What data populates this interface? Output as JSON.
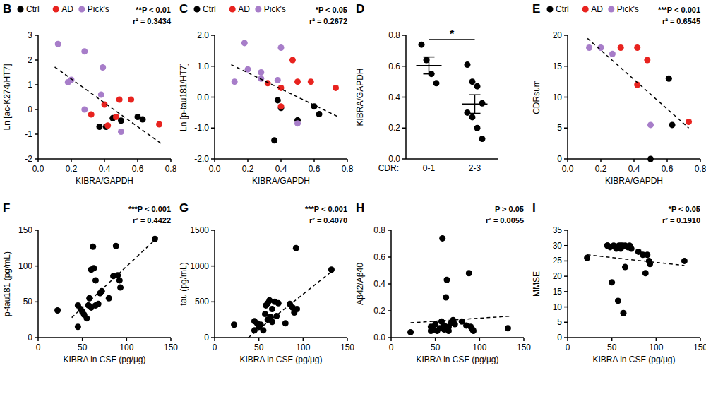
{
  "chart_data": [
    {
      "type": "scatter",
      "title": "B",
      "x_label": "KIBRA/GAPDH",
      "y_label": "Ln [ac-K274/HT7]",
      "xlim": [
        0,
        0.8
      ],
      "xticks": [
        {
          "value": 0,
          "label": "0.0"
        },
        0.2,
        0.4,
        0.6,
        0.8
      ],
      "ylim": [
        -2,
        3
      ],
      "yticks": [
        -2,
        -1,
        0,
        1,
        2,
        3
      ],
      "legend": "top-left",
      "annotations": [
        "**P < 0.01",
        "r² = 0.3434"
      ],
      "series": [
        {
          "name": "Ctrl",
          "color": "#000000",
          "marker": "circle",
          "x": [
            0.37,
            0.41,
            0.45,
            0.5,
            0.6,
            0.63
          ],
          "values": [
            -0.7,
            -0.7,
            -0.35,
            -0.45,
            -0.3,
            -0.4
          ]
        },
        {
          "name": "AD",
          "color": "#e8231f",
          "marker": "circle",
          "x": [
            0.32,
            0.4,
            0.42,
            0.47,
            0.49,
            0.56,
            0.73
          ],
          "values": [
            -0.2,
            0.2,
            -0.65,
            -0.3,
            0.4,
            0.4,
            -0.6
          ]
        },
        {
          "name": "Pick's",
          "color": "#a77dc9",
          "marker": "circle",
          "x": [
            0.12,
            0.18,
            0.2,
            0.28,
            0.28,
            0.38,
            0.39,
            0.5
          ],
          "values": [
            2.65,
            1.1,
            1.2,
            2.35,
            0,
            0.6,
            1.7,
            -0.9
          ]
        },
        {
          "type": "line",
          "line_style": "dashed",
          "color": "#000000",
          "x": [
            0.1,
            0.75
          ],
          "values": [
            1.72,
            -1.42
          ]
        }
      ]
    },
    {
      "type": "scatter",
      "title": "C",
      "x_label": "KIBRA/GAPDH",
      "y_label": "Ln [p-tau181/HT7]",
      "xlim": [
        0,
        0.8
      ],
      "xticks": [
        {
          "value": 0,
          "label": "0.0"
        },
        0.2,
        0.4,
        0.6,
        0.8
      ],
      "ylim": [
        -2,
        2
      ],
      "yticks": [
        {
          "value": -2,
          "label": "-2.0"
        },
        {
          "value": -1,
          "label": "-1.0"
        },
        {
          "value": 0,
          "label": "0.0"
        },
        {
          "value": 1,
          "label": "1.0"
        },
        {
          "value": 2,
          "label": "2.0"
        }
      ],
      "legend": "top-left",
      "annotations": [
        "*P < 0.05",
        "r² = 0.2672"
      ],
      "series": [
        {
          "name": "Ctrl",
          "color": "#000000",
          "marker": "circle",
          "x": [
            0.36,
            0.38,
            0.4,
            0.5,
            0.6,
            0.63
          ],
          "values": [
            -1.4,
            -0.1,
            -0.35,
            -0.75,
            -0.3,
            -0.55
          ]
        },
        {
          "name": "AD",
          "color": "#e8231f",
          "marker": "circle",
          "x": [
            0.32,
            0.4,
            0.4,
            0.47,
            0.5,
            0.58,
            0.73
          ],
          "values": [
            0.45,
            0.3,
            -0.3,
            1.2,
            0.5,
            0.5,
            0.3
          ]
        },
        {
          "name": "Pick's",
          "color": "#a77dc9",
          "marker": "circle",
          "x": [
            0.12,
            0.18,
            0.2,
            0.28,
            0.28,
            0.4,
            0.38,
            0.5
          ],
          "values": [
            0.5,
            1.75,
            0.9,
            0.8,
            0.6,
            1.6,
            0.55,
            -0.85
          ]
        },
        {
          "type": "line",
          "line_style": "dashed",
          "color": "#000000",
          "x": [
            0.1,
            0.75
          ],
          "values": [
            1.05,
            -0.65
          ]
        }
      ]
    },
    {
      "type": "scatter",
      "title": "D",
      "x_label": "CDR:",
      "y_label": "KIBRA/GAPDH",
      "categories": [
        "0-1",
        "2-3"
      ],
      "values": [
        [
          0.74,
          0.64,
          0.55,
          0.49
        ],
        [
          0.61,
          0.5,
          0.47,
          0.36,
          0.3,
          0.27,
          0.2,
          0.13
        ]
      ],
      "means": [
        0.605,
        0.355
      ],
      "errors": [
        0.055,
        0.06
      ],
      "color": "#000000",
      "marker": "circle",
      "ylim": [
        0,
        0.8
      ],
      "yticks": [
        {
          "value": 0,
          "label": "0.0"
        },
        0.2,
        0.4,
        0.6,
        0.8
      ],
      "annotations": [
        "*"
      ]
    },
    {
      "type": "scatter",
      "title": "E",
      "x_label": "KIBRA/GAPDH",
      "y_label": "CDRsum",
      "xlim": [
        0,
        0.8
      ],
      "xticks": [
        {
          "value": 0,
          "label": "0.0"
        },
        0.2,
        0.4,
        0.6,
        0.8
      ],
      "ylim": [
        0,
        20
      ],
      "yticks": [
        0,
        5,
        10,
        15,
        20
      ],
      "legend": "top-left",
      "annotations": [
        "***P < 0.001",
        "r² = 0.6545"
      ],
      "series": [
        {
          "name": "Ctrl",
          "color": "#000000",
          "marker": "circle",
          "x": [
            0.5,
            0.61,
            0.63
          ],
          "values": [
            0,
            13,
            5.5
          ]
        },
        {
          "name": "AD",
          "color": "#e8231f",
          "marker": "circle",
          "x": [
            0.32,
            0.42,
            0.42,
            0.48,
            0.73
          ],
          "values": [
            18,
            18,
            12,
            16,
            6
          ]
        },
        {
          "name": "Pick's",
          "color": "#a77dc9",
          "marker": "circle",
          "x": [
            0.13,
            0.2,
            0.27,
            0.5
          ],
          "values": [
            18,
            18,
            17,
            5.5
          ]
        },
        {
          "type": "line",
          "line_style": "dashed",
          "color": "#000000",
          "x": [
            0.12,
            0.73
          ],
          "values": [
            19.5,
            5
          ]
        }
      ]
    },
    {
      "type": "scatter",
      "title": "F",
      "x_label": "KIBRA  in CSF (pg/μg)",
      "y_label": "p-tau181 (pg/mL)",
      "xlim": [
        0,
        150
      ],
      "xticks": [
        0,
        50,
        100,
        150
      ],
      "ylim": [
        0,
        150
      ],
      "yticks": [
        0,
        50,
        100,
        150
      ],
      "annotations": [
        "***P < 0.001",
        "r² = 0.4422"
      ],
      "series": [
        {
          "color": "#000000",
          "marker": "circle",
          "x": [
            22,
            45,
            45,
            48,
            50,
            52,
            55,
            57,
            58,
            60,
            60,
            62,
            63,
            65,
            65,
            68,
            70,
            72,
            80,
            85,
            88,
            90,
            92,
            93,
            132
          ],
          "values": [
            38,
            15,
            45,
            40,
            36,
            32,
            27,
            45,
            55,
            42,
            95,
            127,
            97,
            80,
            45,
            47,
            62,
            65,
            55,
            86,
            128,
            87,
            80,
            70,
            138
          ]
        },
        {
          "type": "line",
          "line_style": "dashed",
          "color": "#000000",
          "x": [
            38,
            135
          ],
          "values": [
            28,
            140
          ]
        }
      ]
    },
    {
      "type": "scatter",
      "title": "G",
      "x_label": "KIBRA  in CSF (pg/μg)",
      "y_label": "tau (pg/mL)",
      "xlim": [
        0,
        150
      ],
      "xticks": [
        0,
        50,
        100,
        150
      ],
      "ylim": [
        0,
        1500
      ],
      "yticks": [
        0,
        500,
        1000,
        1500
      ],
      "annotations": [
        "***P < 0.001",
        "r² = 0.4070"
      ],
      "series": [
        {
          "color": "#000000",
          "marker": "circle",
          "x": [
            22,
            45,
            45,
            48,
            50,
            52,
            55,
            57,
            58,
            60,
            60,
            62,
            63,
            65,
            65,
            68,
            70,
            72,
            80,
            85,
            88,
            90,
            92,
            93,
            132
          ],
          "values": [
            180,
            100,
            230,
            200,
            150,
            180,
            100,
            330,
            450,
            250,
            480,
            520,
            290,
            400,
            220,
            500,
            300,
            480,
            200,
            470,
            420,
            350,
            1250,
            400,
            950
          ]
        },
        {
          "type": "line",
          "line_style": "dashed",
          "color": "#000000",
          "x": [
            38,
            135
          ],
          "values": [
            0,
            950
          ]
        }
      ]
    },
    {
      "type": "scatter",
      "title": "H",
      "x_label": "KIBRA  in CSF (pg/μg)",
      "y_label": "Aβ42/Aβ40",
      "xlim": [
        0,
        150
      ],
      "xticks": [
        0,
        50,
        100,
        150
      ],
      "ylim": [
        0,
        0.8
      ],
      "yticks": [
        {
          "value": 0,
          "label": "0.0"
        },
        0.2,
        0.4,
        0.6,
        0.8
      ],
      "annotations": [
        "P > 0.05",
        "r² = 0.0055"
      ],
      "series": [
        {
          "color": "#000000",
          "marker": "circle",
          "x": [
            22,
            45,
            45,
            48,
            50,
            52,
            55,
            57,
            58,
            60,
            60,
            62,
            63,
            65,
            65,
            68,
            70,
            72,
            80,
            85,
            88,
            90,
            92,
            93,
            132
          ],
          "values": [
            0.04,
            0.05,
            0.08,
            0.06,
            0.1,
            0.05,
            0.07,
            0.12,
            0.74,
            0.06,
            0.09,
            0.3,
            0.43,
            0.08,
            0.05,
            0.11,
            0.13,
            0.1,
            0.12,
            0.09,
            0.48,
            0.08,
            0.06,
            0.05,
            0.07
          ]
        },
        {
          "type": "line",
          "line_style": "dashed",
          "color": "#000000",
          "x": [
            22,
            135
          ],
          "values": [
            0.11,
            0.16
          ]
        }
      ]
    },
    {
      "type": "scatter",
      "title": "I",
      "x_label": "KIBRA  in CSF (pg/μg)",
      "y_label": "MMSE",
      "xlim": [
        0,
        150
      ],
      "xticks": [
        0,
        50,
        100,
        150
      ],
      "ylim": [
        0,
        35
      ],
      "yticks": [
        0,
        5,
        10,
        15,
        20,
        25,
        30,
        35
      ],
      "annotations": [
        "*P < 0.05",
        "r² = 0.1910"
      ],
      "series": [
        {
          "color": "#000000",
          "marker": "circle",
          "x": [
            22,
            45,
            45,
            48,
            50,
            52,
            55,
            57,
            58,
            60,
            60,
            62,
            63,
            65,
            65,
            68,
            70,
            72,
            80,
            85,
            88,
            90,
            92,
            93,
            132
          ],
          "values": [
            26,
            30,
            30,
            29.5,
            18,
            30,
            29,
            12,
            30,
            29,
            30,
            30,
            8,
            23,
            30,
            29.5,
            30,
            29,
            28,
            27,
            21,
            27,
            25,
            24,
            25
          ]
        },
        {
          "type": "line",
          "line_style": "dashed",
          "color": "#000000",
          "x": [
            22,
            132
          ],
          "values": [
            27,
            23.5
          ]
        }
      ]
    }
  ]
}
